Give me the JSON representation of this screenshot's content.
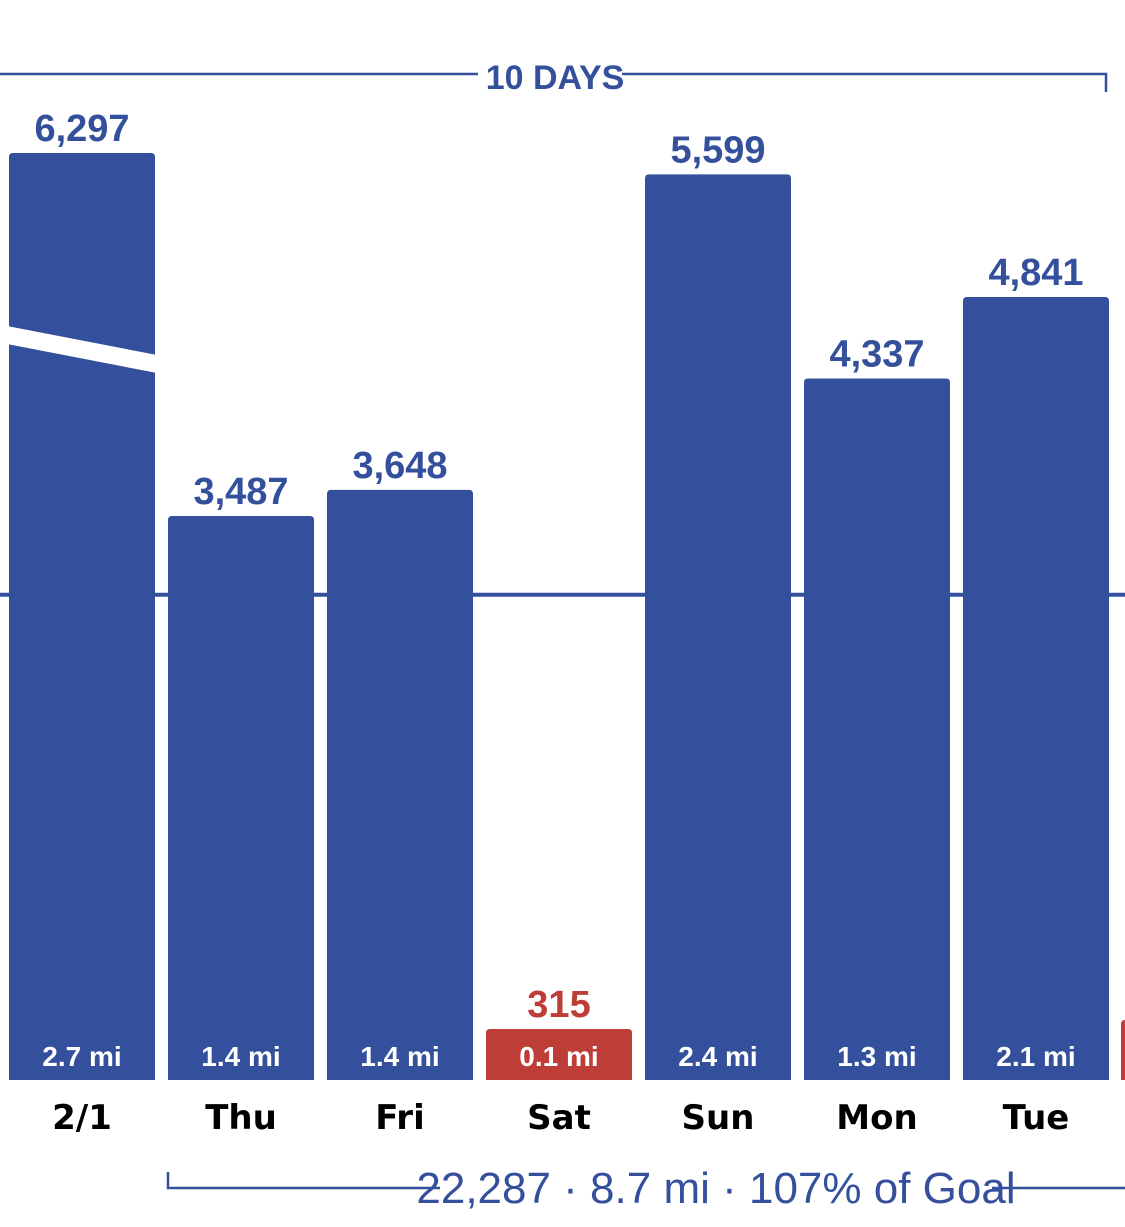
{
  "colors": {
    "bar": "#34509d",
    "bar_below_goal": "#bf3d37",
    "label_primary": "#34509d",
    "label_alert": "#bf3d37",
    "goal_line": "#34509d",
    "bracket": "#34509d"
  },
  "range_label": "10 DAYS",
  "summary": "22,287 · 8.7 mi · 107% of Goal",
  "chart_data": {
    "type": "bar",
    "categories": [
      "2/1",
      "Thu",
      "Fri",
      "Sat",
      "Sun",
      "Mon",
      "Tue"
    ],
    "values": [
      6297,
      3487,
      3648,
      315,
      5599,
      4337,
      4841
    ],
    "value_labels": [
      "6,297",
      "3,487",
      "3,648",
      "315",
      "5,599",
      "4,337",
      "4,841"
    ],
    "distances": [
      "2.7 mi",
      "1.4 mi",
      "1.4 mi",
      "0.1 mi",
      "2.4 mi",
      "1.3 mi",
      "2.1 mi"
    ],
    "below_goal": [
      false,
      false,
      false,
      true,
      false,
      false,
      false
    ],
    "goal_value": 3000,
    "axis_break_on_first_bar": true,
    "ylim": [
      0,
      5700
    ]
  }
}
